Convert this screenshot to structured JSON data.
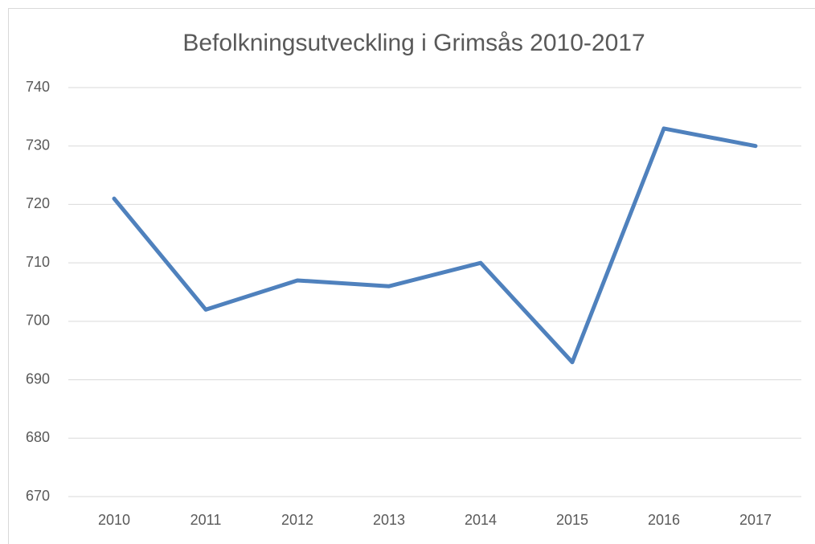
{
  "chart_data": {
    "type": "line",
    "title": "Befolkningsutveckling i Grimsås 2010-2017",
    "categories": [
      "2010",
      "2011",
      "2012",
      "2013",
      "2014",
      "2015",
      "2016",
      "2017"
    ],
    "values": [
      721,
      702,
      707,
      706,
      710,
      693,
      733,
      730
    ],
    "color": "#4f81bd",
    "ylim": [
      670,
      740
    ],
    "yticks": [
      670,
      680,
      690,
      700,
      710,
      720,
      730,
      740
    ],
    "grid": true
  }
}
